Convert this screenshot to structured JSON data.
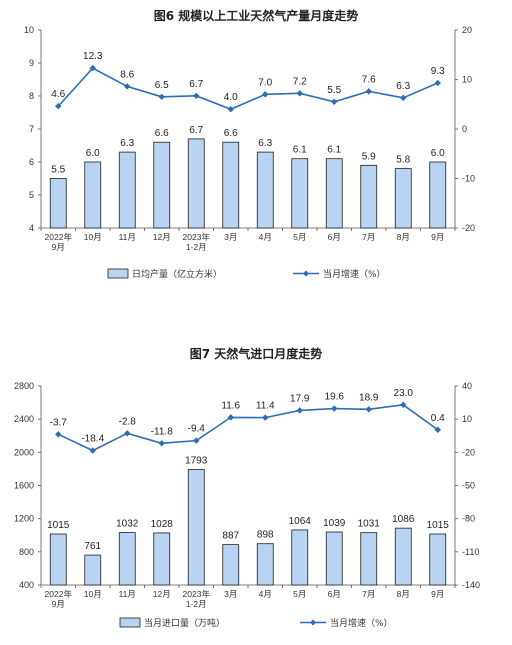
{
  "chart_data": [
    {
      "type": "bar+line",
      "title": "图6  规模以上工业天然气产量月度走势",
      "categories": [
        "2022年\n9月",
        "10月",
        "11月",
        "12月",
        "2023年\n1-2月",
        "3月",
        "4月",
        "5月",
        "6月",
        "7月",
        "8月",
        "9月"
      ],
      "series": [
        {
          "name": "日均产量（亿立方米）",
          "kind": "bar",
          "axis": "left",
          "values": [
            5.5,
            6.0,
            6.3,
            6.6,
            6.7,
            6.6,
            6.3,
            6.1,
            6.1,
            5.9,
            5.8,
            6.0
          ],
          "labels": [
            "5.5",
            "6.0",
            "6.3",
            "6.6",
            "6.7",
            "6.6",
            "6.3",
            "6.1",
            "6.1",
            "5.9",
            "5.8",
            "6.0"
          ]
        },
        {
          "name": "当月增速（%）",
          "kind": "line",
          "axis": "right",
          "values": [
            4.6,
            12.3,
            8.6,
            6.5,
            6.7,
            4.0,
            7.0,
            7.2,
            5.5,
            7.6,
            6.3,
            9.3
          ],
          "labels": [
            "4.6",
            "12.3",
            "8.6",
            "6.5",
            "6.7",
            "4.0",
            "7.0",
            "7.2",
            "5.5",
            "7.6",
            "6.3",
            "9.3"
          ]
        }
      ],
      "y_left": {
        "min": 4,
        "max": 10,
        "ticks": [
          "4",
          "5",
          "6",
          "7",
          "8",
          "9",
          "10"
        ]
      },
      "y_right": {
        "min": -20,
        "max": 20,
        "ticks": [
          "-20",
          "-10",
          "0",
          "10",
          "20"
        ]
      },
      "legend_position": "bottom",
      "colors": {
        "bar_fill": "#b8d4f2",
        "bar_stroke": "#1f1f1f",
        "line": "#2e6db5"
      }
    },
    {
      "type": "bar+line",
      "title": "图7  天然气进口月度走势",
      "categories": [
        "2022年\n9月",
        "10月",
        "11月",
        "12月",
        "2023年\n1-2月",
        "3月",
        "4月",
        "5月",
        "6月",
        "7月",
        "8月",
        "9月"
      ],
      "series": [
        {
          "name": "当月进口量（万吨）",
          "kind": "bar",
          "axis": "left",
          "values": [
            1015,
            761,
            1032,
            1028,
            1793,
            887,
            898,
            1064,
            1039,
            1031,
            1086,
            1015
          ],
          "labels": [
            "1015",
            "761",
            "1032",
            "1028",
            "1793",
            "887",
            "898",
            "1064",
            "1039",
            "1031",
            "1086",
            "1015"
          ]
        },
        {
          "name": "当月增速（%）",
          "kind": "line",
          "axis": "right",
          "values": [
            -3.7,
            -18.4,
            -2.8,
            -11.8,
            -9.4,
            11.6,
            11.4,
            17.9,
            19.6,
            18.9,
            23.0,
            0.4
          ],
          "labels": [
            "-3.7",
            "-18.4",
            "-2.8",
            "-11.8",
            "-9.4",
            "11.6",
            "11.4",
            "17.9",
            "19.6",
            "18.9",
            "23.0",
            "0.4"
          ]
        }
      ],
      "y_left": {
        "min": 400,
        "max": 2800,
        "ticks": [
          "400",
          "800",
          "1200",
          "1600",
          "2000",
          "2400",
          "2800"
        ]
      },
      "y_right": {
        "min": -140,
        "max": 40,
        "tick_values": [
          -140,
          -110,
          -80,
          -50,
          -20,
          10,
          40
        ],
        "ticks": [
          "-140",
          "-110",
          "-80",
          "-50",
          "-20",
          "10",
          "40"
        ]
      },
      "legend_position": "bottom",
      "colors": {
        "bar_fill": "#b8d4f2",
        "bar_stroke": "#1f1f1f",
        "line": "#2e6db5"
      }
    }
  ]
}
